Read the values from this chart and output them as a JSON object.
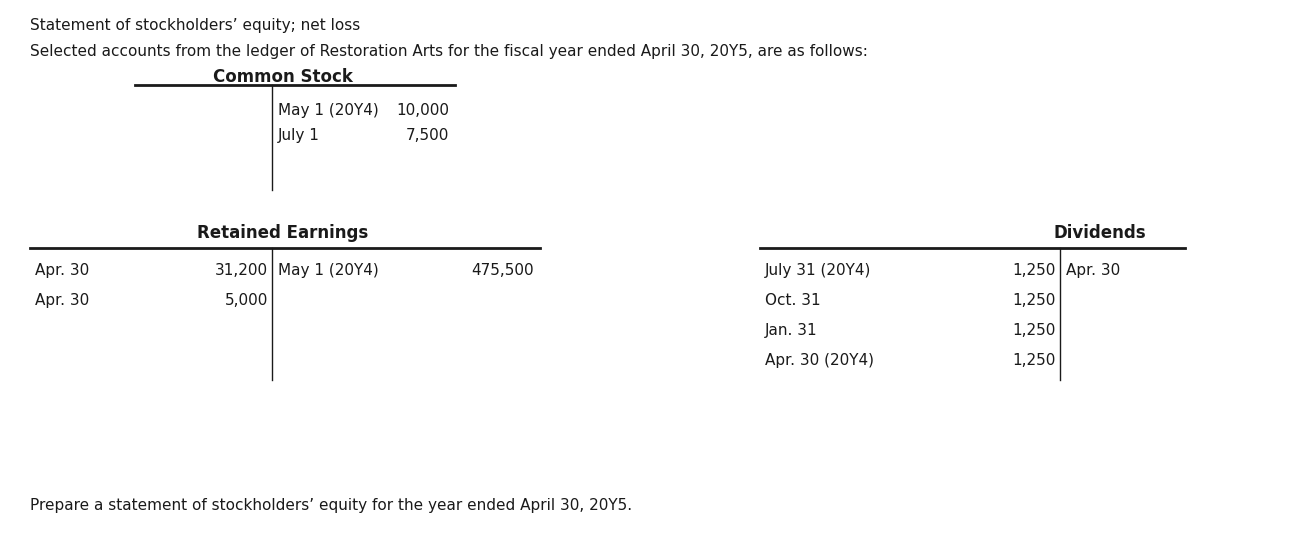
{
  "title_line1": "Statement of stockholders’ equity; net loss",
  "title_line2": "Selected accounts from the ledger of Restoration Arts for the fiscal year ended April 30, 20Y5, are as follows:",
  "common_stock_header": "Common Stock",
  "cs_rows": [
    {
      "label": "May 1 (20Y4)",
      "value": "10,000"
    },
    {
      "label": "July 1",
      "value": "7,500"
    }
  ],
  "re_header": "Retained Earnings",
  "re_left_rows": [
    {
      "label": "Apr. 30",
      "value": "31,200"
    },
    {
      "label": "Apr. 30",
      "value": "5,000"
    }
  ],
  "re_right_rows": [
    {
      "label": "May 1 (20Y4)",
      "value": "475,500"
    }
  ],
  "div_header": "Dividends",
  "div_left_rows": [
    {
      "label": "July 31 (20Y4)",
      "value": "1,250"
    },
    {
      "label": "Oct. 31",
      "value": "1,250"
    },
    {
      "label": "Jan. 31",
      "value": "1,250"
    },
    {
      "label": "Apr. 30 (20Y4)",
      "value": "1,250"
    }
  ],
  "div_right_rows": [
    {
      "label": "Apr. 30",
      "value": ""
    }
  ],
  "footer": "Prepare a statement of stockholders’ equity for the year ended April 30, 20Y5.",
  "bg_color": "#ffffff",
  "text_color": "#1a1a1a",
  "font_size": 11.0,
  "bold_font_size": 12.0
}
